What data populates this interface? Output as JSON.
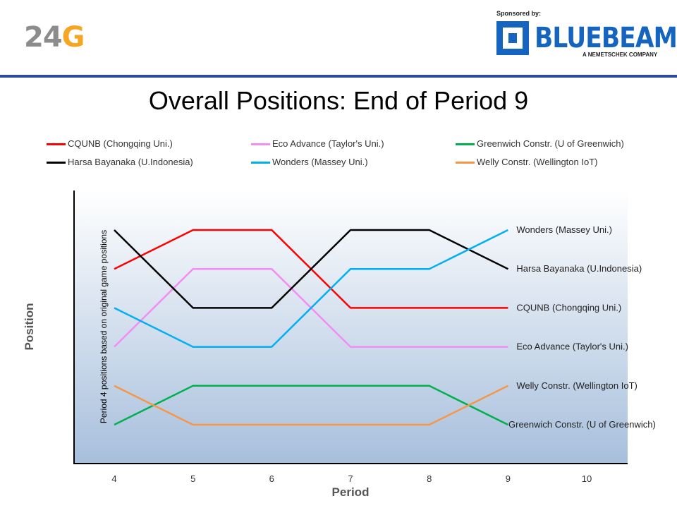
{
  "header": {
    "logo_num": "24",
    "logo_g": "G",
    "sponsor_label": "Sponsored by:",
    "sponsor_name": "BLUEBEAM",
    "sponsor_sub": "A NEMETSCHEK COMPANY"
  },
  "colors": {
    "rule": "#2e4a9e",
    "logo_accent": "#f5a623",
    "sponsor_blue": "#1565c0"
  },
  "chart_data": {
    "type": "line",
    "title": "Overall Positions: End of Period 9",
    "xlabel": "Period",
    "ylabel": "Position",
    "annotation": "Period 4 positions based on original game positions",
    "x": [
      4,
      5,
      6,
      7,
      8,
      9
    ],
    "xticks": [
      4,
      5,
      6,
      7,
      8,
      9,
      10
    ],
    "xlim": [
      4,
      10
    ],
    "ylim": [
      0.5,
      6.5
    ],
    "y_inverted": true,
    "legend_placement": "top",
    "series": [
      {
        "name": "CQUNB (Chongqing Uni.)",
        "color": "#ff0000",
        "values": [
          2,
          1,
          1,
          3,
          3,
          3
        ]
      },
      {
        "name": "Eco Advance (Taylor's Uni.)",
        "color": "#f48cf4",
        "values": [
          4,
          2,
          2,
          4,
          4,
          4
        ]
      },
      {
        "name": "Greenwich Constr. (U of Greenwich)",
        "color": "#00b050",
        "values": [
          6,
          5,
          5,
          5,
          5,
          6
        ]
      },
      {
        "name": "Harsa Bayanaka (U.Indonesia)",
        "color": "#000000",
        "values": [
          1,
          3,
          3,
          1,
          1,
          2
        ]
      },
      {
        "name": "Wonders (Massey Uni.)",
        "color": "#00b0f0",
        "values": [
          3,
          4,
          4,
          2,
          2,
          1
        ]
      },
      {
        "name": "Welly Constr. (Wellington IoT)",
        "color": "#f79646",
        "values": [
          5,
          6,
          6,
          6,
          6,
          5
        ]
      }
    ]
  }
}
